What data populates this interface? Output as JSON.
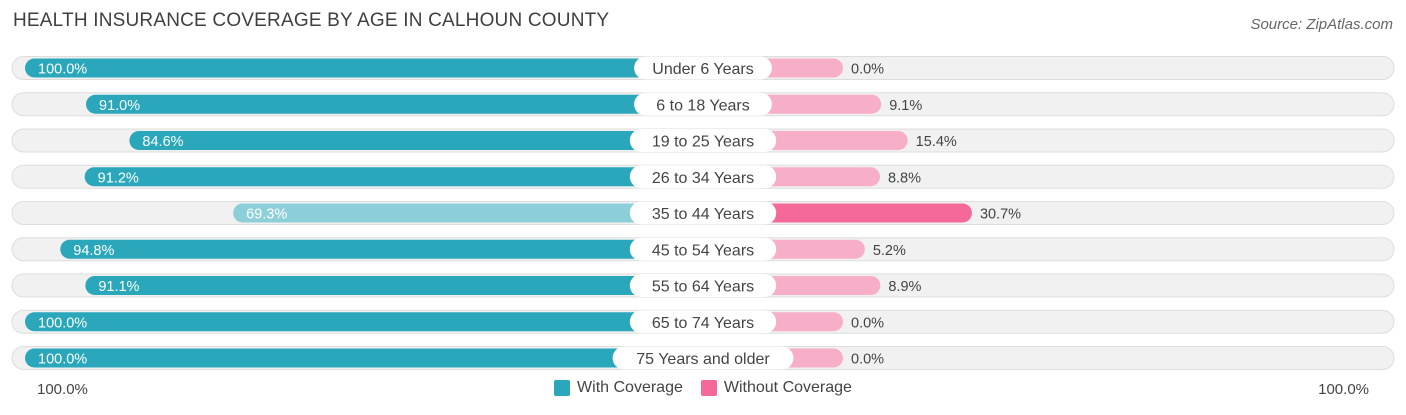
{
  "chart_data": {
    "type": "bar",
    "orientation": "horizontal-diverging",
    "title": "HEALTH INSURANCE COVERAGE BY AGE IN CALHOUN COUNTY",
    "source": "Source: ZipAtlas.com",
    "categories": [
      "Under 6 Years",
      "6 to 18 Years",
      "19 to 25 Years",
      "26 to 34 Years",
      "35 to 44 Years",
      "45 to 54 Years",
      "55 to 64 Years",
      "65 to 74 Years",
      "75 Years and older"
    ],
    "series": [
      {
        "name": "With Coverage",
        "values": [
          100.0,
          91.0,
          84.6,
          91.2,
          69.3,
          94.8,
          91.1,
          100.0,
          100.0
        ],
        "labels": [
          "100.0%",
          "91.0%",
          "84.6%",
          "91.2%",
          "69.3%",
          "94.8%",
          "91.1%",
          "100.0%",
          "100.0%"
        ]
      },
      {
        "name": "Without Coverage",
        "values": [
          0.0,
          9.1,
          15.4,
          8.8,
          30.7,
          5.2,
          8.9,
          0.0,
          0.0
        ],
        "labels": [
          "0.0%",
          "9.1%",
          "15.4%",
          "8.8%",
          "30.7%",
          "5.2%",
          "8.9%",
          "0.0%",
          "0.0%"
        ]
      }
    ],
    "axis": {
      "left_label": "100.0%",
      "right_label": "100.0%",
      "range": [
        0,
        100
      ]
    },
    "legend_position": "bottom-center",
    "colors": {
      "with": "#2aa7ba",
      "with_light": "#8dcfd9",
      "without": "#f5689a",
      "without_light": "#f7aec8",
      "track": "#f1f1f1",
      "track_border": "#dddddd"
    }
  }
}
